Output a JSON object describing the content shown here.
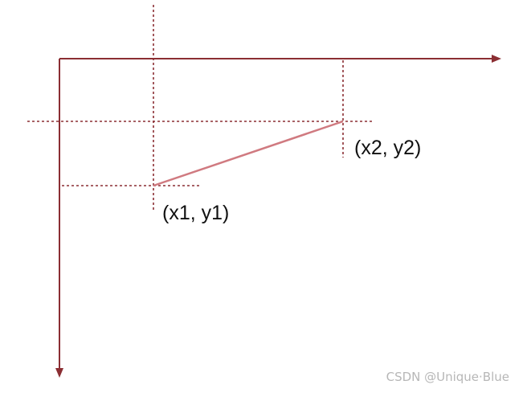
{
  "points": {
    "p1_label": "(x1, y1)",
    "p2_label": "(x2, y2)"
  },
  "watermark": "CSDN @Unique·Blue",
  "colors": {
    "axis": "#8b2e33",
    "segment": "#d07a80",
    "label": "#111111",
    "watermark": "#b7b7b7"
  }
}
